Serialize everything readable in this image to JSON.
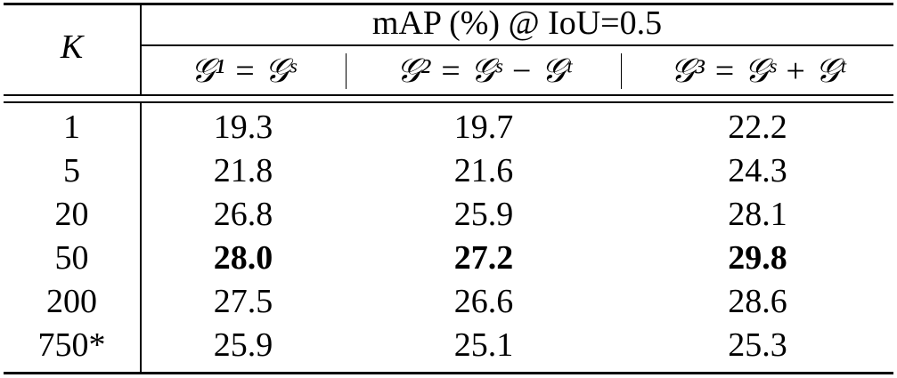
{
  "table": {
    "header": {
      "k": "K",
      "group": "mAP (%) @ IoU=0.5",
      "columns": [
        "𝒢¹ = 𝒢ˢ",
        "𝒢² = 𝒢ˢ − 𝒢ᵗ",
        "𝒢³ = 𝒢ˢ + 𝒢ᵗ"
      ]
    },
    "rows": [
      [
        "1",
        "19.3",
        "19.7",
        "22.2"
      ],
      [
        "5",
        "21.8",
        "21.6",
        "24.3"
      ],
      [
        "20",
        "26.8",
        "25.9",
        "28.1"
      ],
      [
        "50",
        "28.0",
        "27.2",
        "29.8"
      ],
      [
        "200",
        "27.5",
        "26.6",
        "28.6"
      ],
      [
        "750*",
        "25.9",
        "25.1",
        "25.3"
      ]
    ]
  }
}
